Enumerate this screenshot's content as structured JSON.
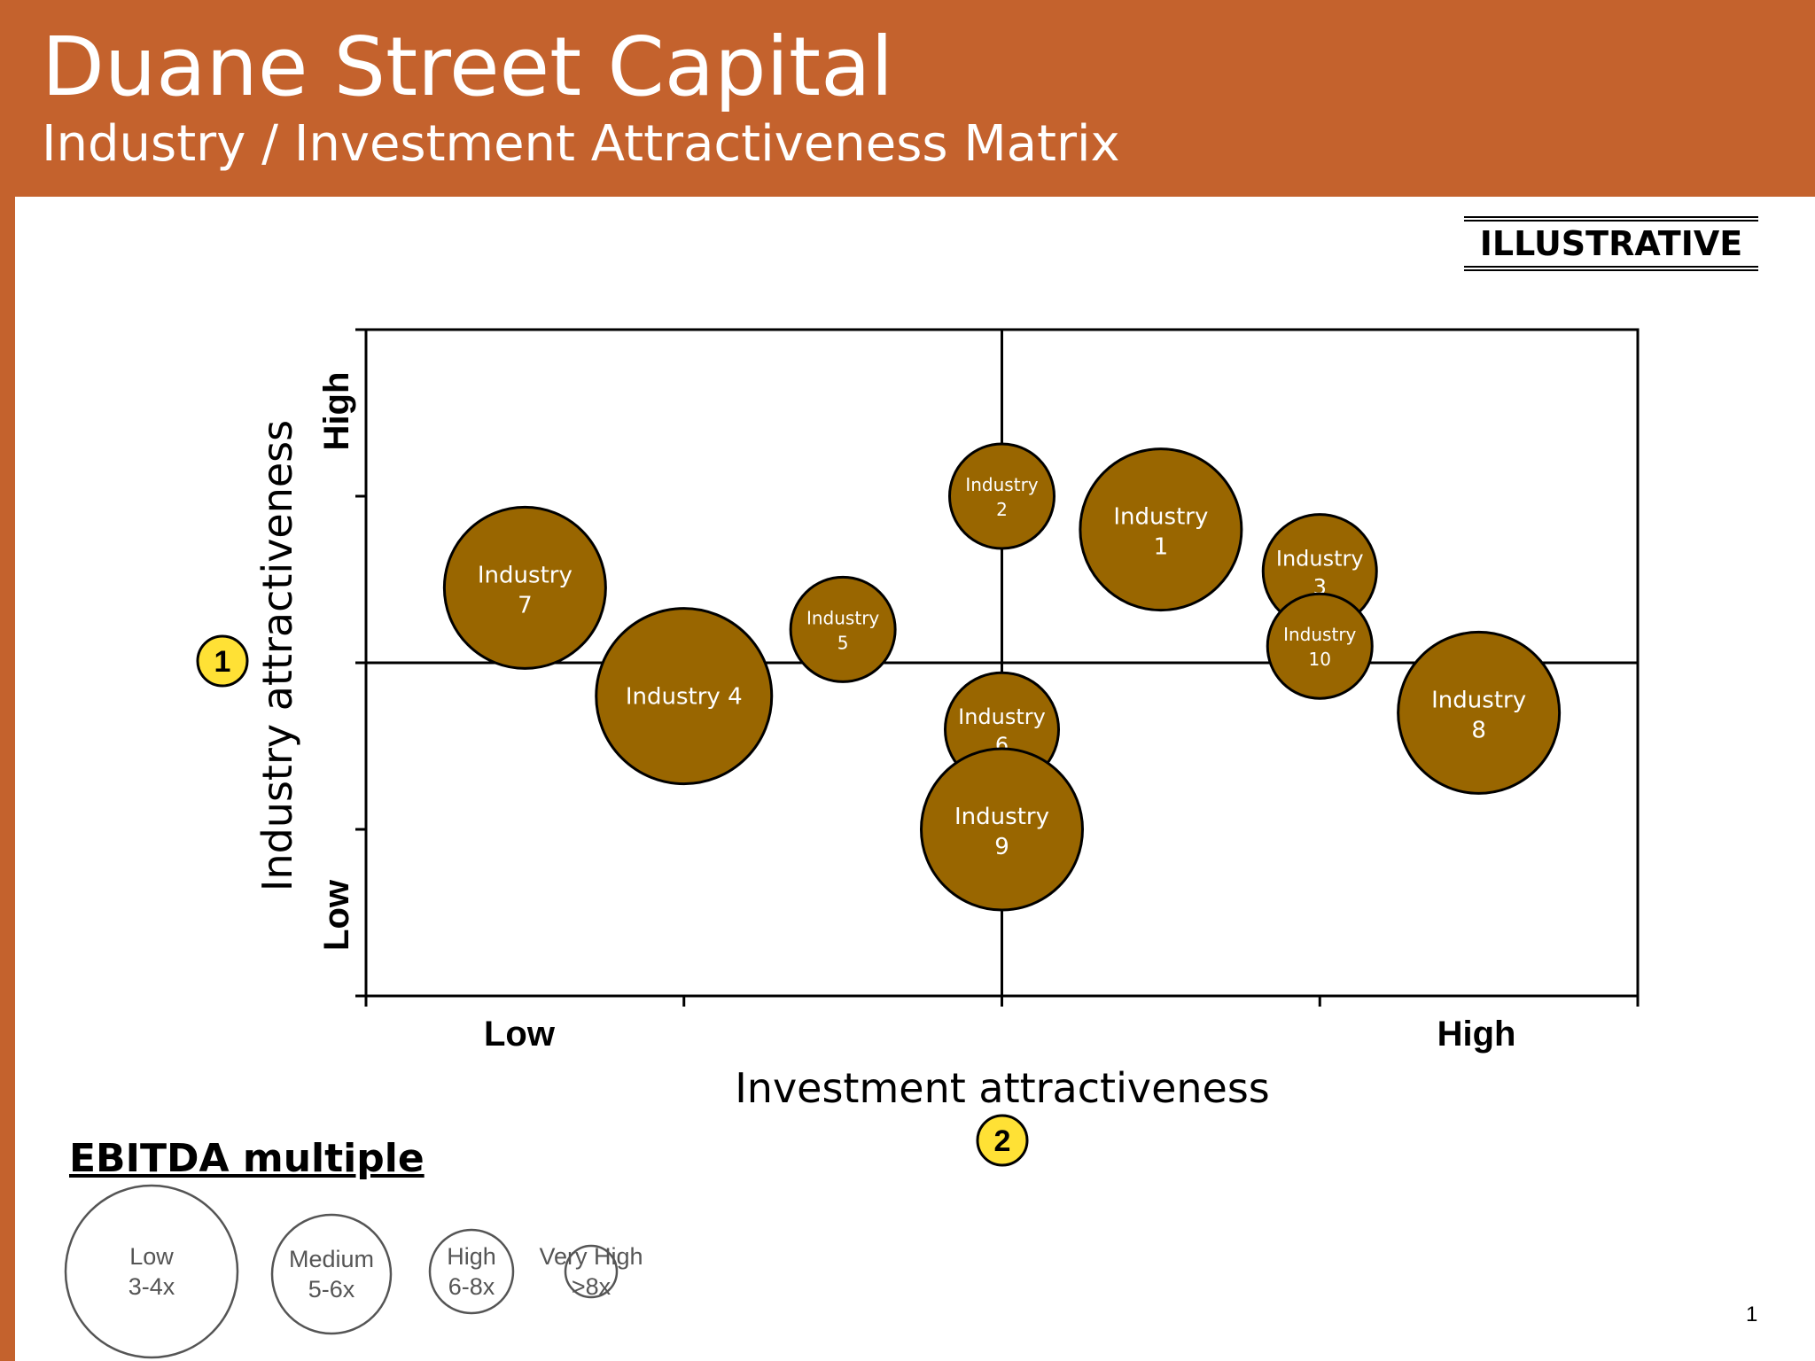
{
  "header": {
    "company": "Duane Street Capital",
    "subtitle": "Industry / Investment Attractiveness Matrix"
  },
  "badge": "ILLUSTRATIVE",
  "colors": {
    "header": "#C4622D",
    "bubble_fill": "#996600",
    "marker_fill": "#FFE135"
  },
  "chart_data": {
    "type": "bubble",
    "xlabel": "Investment attractiveness",
    "ylabel": "Industry attractiveness",
    "x_ticks": {
      "low": "Low",
      "high": "High"
    },
    "y_ticks": {
      "low": "Low",
      "high": "High"
    },
    "xlim": [
      0,
      4
    ],
    "ylim": [
      0,
      4
    ],
    "x_divider": 2,
    "y_divider": 2,
    "points": [
      {
        "label": "Industry 1",
        "line1": "Industry",
        "line2": "1",
        "x": 2.5,
        "y": 2.8,
        "multiple": "Medium"
      },
      {
        "label": "Industry 2",
        "line1": "Industry",
        "line2": "2",
        "x": 2.0,
        "y": 3.0,
        "multiple": "Very High"
      },
      {
        "label": "Industry 3",
        "line1": "Industry",
        "line2": "3",
        "x": 3.0,
        "y": 2.55,
        "multiple": "High"
      },
      {
        "label": "Industry 4",
        "line1": "Industry 4",
        "line2": "",
        "x": 1.0,
        "y": 1.8,
        "multiple": "Low"
      },
      {
        "label": "Industry 5",
        "line1": "Industry",
        "line2": "5",
        "x": 1.5,
        "y": 2.2,
        "multiple": "Very High"
      },
      {
        "label": "Industry 6",
        "line1": "Industry",
        "line2": "6",
        "x": 2.0,
        "y": 1.6,
        "multiple": "High"
      },
      {
        "label": "Industry 7",
        "line1": "Industry",
        "line2": "7",
        "x": 0.5,
        "y": 2.45,
        "multiple": "Medium"
      },
      {
        "label": "Industry 8",
        "line1": "Industry",
        "line2": "8",
        "x": 3.5,
        "y": 1.7,
        "multiple": "Medium"
      },
      {
        "label": "Industry 9",
        "line1": "Industry",
        "line2": "9",
        "x": 2.0,
        "y": 1.0,
        "multiple": "Medium"
      },
      {
        "label": "Industry 10",
        "line1": "Industry",
        "line2": "10",
        "x": 3.0,
        "y": 2.1,
        "multiple": "Very High"
      }
    ],
    "markers": [
      {
        "label": "1",
        "axis": "y"
      },
      {
        "label": "2",
        "axis": "x"
      }
    ],
    "legend": {
      "title": "EBITDA multiple",
      "items": [
        {
          "name": "Low",
          "range": "3-4x"
        },
        {
          "name": "Medium",
          "range": "5-6x"
        },
        {
          "name": "High",
          "range": "6-8x"
        },
        {
          "name": "Very High",
          "range": ">8x"
        }
      ]
    }
  },
  "page_number": "1"
}
